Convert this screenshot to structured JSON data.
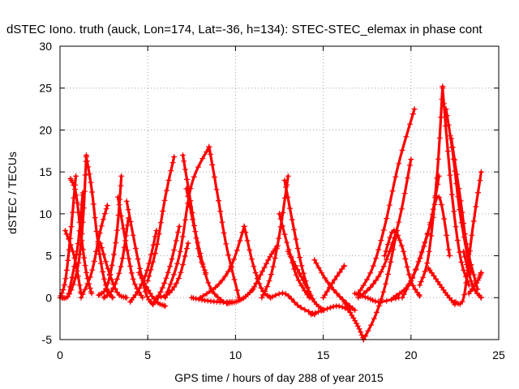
{
  "chart_data": {
    "type": "line",
    "title": "dSTEC Iono. truth (auck, Lon=174, Lat=-36, h=134): STEC-STEC_elemax in phase cont",
    "xlabel": "GPS time / hours of day 288 of year 2015",
    "ylabel": "dSTEC  / TECUs",
    "xlim": [
      0,
      25
    ],
    "ylim": [
      -5,
      30
    ],
    "xticks": [
      "0",
      "5",
      "10",
      "15",
      "20",
      "25"
    ],
    "yticks": [
      "-5",
      "0",
      "5",
      "10",
      "15",
      "20",
      "25",
      "30"
    ],
    "grid": true,
    "series_color": "#ff0000",
    "marker": "plus",
    "series": [
      {
        "x": [
          0.0,
          0.3,
          0.6,
          0.9
        ],
        "y": [
          0.0,
          2.0,
          7.5,
          14.5
        ]
      },
      {
        "x": [
          0.6,
          0.9,
          1.2,
          1.5,
          1.8
        ],
        "y": [
          14.2,
          12.5,
          7.5,
          3.0,
          0.5
        ]
      },
      {
        "x": [
          0.1,
          0.5,
          1.0,
          1.3,
          1.5
        ],
        "y": [
          0.0,
          0.3,
          3.5,
          9.0,
          17.0
        ]
      },
      {
        "x": [
          1.5,
          1.8,
          2.2,
          2.6,
          3.0
        ],
        "y": [
          16.8,
          13.0,
          6.0,
          1.5,
          0.0
        ]
      },
      {
        "x": [
          0.3,
          0.8,
          1.2
        ],
        "y": [
          8.0,
          5.0,
          0.5
        ]
      },
      {
        "x": [
          0.5,
          1.0,
          1.3
        ],
        "y": [
          0.5,
          6.0,
          12.5
        ]
      },
      {
        "x": [
          1.2,
          1.8,
          2.3,
          2.7
        ],
        "y": [
          0.0,
          3.0,
          8.0,
          11.0
        ]
      },
      {
        "x": [
          2.3,
          2.8,
          3.3,
          3.8
        ],
        "y": [
          6.5,
          3.0,
          0.5,
          0.0
        ]
      },
      {
        "x": [
          2.2,
          2.7,
          3.2,
          3.5
        ],
        "y": [
          0.3,
          1.5,
          7.0,
          14.5
        ]
      },
      {
        "x": [
          3.3,
          3.8,
          4.2,
          4.7
        ],
        "y": [
          12.0,
          6.0,
          2.0,
          0.0
        ]
      },
      {
        "x": [
          2.5,
          3.0,
          3.5,
          3.9
        ],
        "y": [
          0.0,
          1.0,
          4.0,
          9.5
        ]
      },
      {
        "x": [
          3.8,
          4.4,
          4.9,
          5.3
        ],
        "y": [
          11.5,
          5.0,
          0.5,
          -0.8
        ]
      },
      {
        "x": [
          4.0,
          4.5,
          5.0,
          5.5
        ],
        "y": [
          -0.5,
          1.0,
          3.5,
          8.0
        ]
      },
      {
        "x": [
          4.5,
          5.0,
          5.5,
          6.0
        ],
        "y": [
          3.0,
          1.0,
          -0.5,
          -1.0
        ]
      },
      {
        "x": [
          5.0,
          5.5,
          6.0,
          6.5
        ],
        "y": [
          2.0,
          6.0,
          12.0,
          16.8
        ]
      },
      {
        "x": [
          5.3,
          5.8,
          6.3,
          6.8
        ],
        "y": [
          -0.8,
          1.0,
          4.0,
          8.5
        ]
      },
      {
        "x": [
          5.5,
          6.2,
          6.8,
          7.3
        ],
        "y": [
          0.0,
          0.5,
          2.5,
          6.5
        ]
      },
      {
        "x": [
          7.0,
          7.4,
          7.9,
          8.3
        ],
        "y": [
          17.0,
          12.0,
          5.5,
          3.0
        ]
      },
      {
        "x": [
          6.0,
          6.8,
          7.5,
          8.5
        ],
        "y": [
          0.0,
          5.0,
          13.5,
          18.0
        ]
      },
      {
        "x": [
          7.2,
          7.8,
          8.5,
          9.3
        ],
        "y": [
          13.0,
          7.0,
          1.5,
          -0.5
        ]
      },
      {
        "x": [
          7.5,
          8.2,
          9.0,
          9.8
        ],
        "y": [
          0.0,
          -0.3,
          -0.5,
          -0.5
        ]
      },
      {
        "x": [
          8.5,
          9.0,
          9.5,
          10.2
        ],
        "y": [
          18.0,
          12.0,
          6.0,
          0.0
        ]
      },
      {
        "x": [
          8.0,
          9.0,
          9.8,
          10.5
        ],
        "y": [
          0.0,
          1.5,
          4.0,
          8.5
        ]
      },
      {
        "x": [
          9.5,
          10.0,
          10.5,
          11.0
        ],
        "y": [
          -0.7,
          -0.5,
          0.0,
          1.0
        ]
      },
      {
        "x": [
          10.5,
          11.0,
          11.5,
          12.0
        ],
        "y": [
          8.5,
          4.0,
          1.0,
          0.0
        ]
      },
      {
        "x": [
          11.0,
          11.5,
          12.0,
          12.4
        ],
        "y": [
          1.0,
          3.0,
          5.0,
          6.2
        ]
      },
      {
        "x": [
          11.5,
          12.0,
          12.5,
          13.0
        ],
        "y": [
          0.0,
          2.5,
          7.5,
          14.5
        ]
      },
      {
        "x": [
          12.5,
          13.0,
          13.5,
          14.2
        ],
        "y": [
          10.0,
          6.0,
          2.5,
          0.0
        ]
      },
      {
        "x": [
          12.8,
          13.3,
          13.8,
          14.3
        ],
        "y": [
          14.0,
          8.5,
          3.5,
          0.0
        ]
      },
      {
        "x": [
          12.0,
          12.8,
          13.6,
          14.5
        ],
        "y": [
          0.0,
          0.5,
          -1.0,
          -2.0
        ]
      },
      {
        "x": [
          13.0,
          13.5,
          14.0,
          14.5,
          15.0
        ],
        "y": [
          5.5,
          3.5,
          1.5,
          -0.5,
          -1.5
        ]
      },
      {
        "x": [
          14.5,
          15.2,
          16.0,
          16.8
        ],
        "y": [
          4.5,
          2.0,
          0.0,
          -1.5
        ]
      },
      {
        "x": [
          15.0,
          15.6,
          16.2
        ],
        "y": [
          0.0,
          2.0,
          3.8
        ]
      },
      {
        "x": [
          14.3,
          15.0,
          15.8,
          16.5
        ],
        "y": [
          -2.0,
          -1.5,
          -1.0,
          -1.5
        ]
      },
      {
        "x": [
          16.2,
          16.6,
          17.0,
          17.3
        ],
        "y": [
          -0.5,
          -2.0,
          -3.5,
          -5.0
        ]
      },
      {
        "x": [
          17.3,
          18.0,
          18.6,
          19.2
        ],
        "y": [
          -5.0,
          -2.0,
          2.0,
          8.0
        ]
      },
      {
        "x": [
          16.8,
          17.5,
          18.2,
          19.3
        ],
        "y": [
          0.5,
          0.0,
          -0.5,
          0.0
        ]
      },
      {
        "x": [
          17.0,
          17.8,
          18.5,
          19.3,
          20.0
        ],
        "y": [
          0.0,
          1.5,
          4.0,
          9.0,
          16.5
        ]
      },
      {
        "x": [
          17.0,
          17.8,
          18.5,
          19.3,
          20.2
        ],
        "y": [
          0.5,
          3.5,
          8.5,
          16.0,
          22.5
        ]
      },
      {
        "x": [
          18.5,
          19.0,
          19.5,
          20.0,
          20.5
        ],
        "y": [
          5.0,
          8.0,
          6.0,
          2.0,
          0.2
        ]
      },
      {
        "x": [
          19.0,
          20.0,
          21.0,
          21.6
        ],
        "y": [
          0.0,
          2.0,
          8.0,
          14.5
        ]
      },
      {
        "x": [
          20.5,
          21.0,
          21.5,
          21.8
        ],
        "y": [
          1.5,
          5.0,
          15.0,
          25.2
        ]
      },
      {
        "x": [
          19.5,
          20.2,
          21.0,
          21.6,
          22.2
        ],
        "y": [
          0.0,
          3.0,
          8.0,
          12.0,
          5.0
        ]
      },
      {
        "x": [
          21.8,
          22.3,
          22.8,
          23.3
        ],
        "y": [
          25.0,
          13.0,
          5.0,
          1.5
        ]
      },
      {
        "x": [
          22.0,
          22.4,
          22.8,
          23.4
        ],
        "y": [
          22.5,
          17.0,
          10.0,
          3.0
        ]
      },
      {
        "x": [
          22.3,
          22.8,
          23.2,
          23.8
        ],
        "y": [
          19.0,
          12.0,
          6.0,
          1.0
        ]
      },
      {
        "x": [
          21.0,
          21.5,
          22.0,
          22.5
        ],
        "y": [
          3.5,
          2.0,
          0.5,
          -0.8
        ]
      },
      {
        "x": [
          22.5,
          23.0,
          23.5,
          24.0
        ],
        "y": [
          -0.5,
          0.0,
          8.0,
          15.0
        ]
      },
      {
        "x": [
          23.0,
          23.5,
          24.0
        ],
        "y": [
          5.5,
          1.5,
          0.0
        ]
      },
      {
        "x": [
          23.3,
          23.8,
          24.0
        ],
        "y": [
          0.5,
          2.0,
          3.0
        ]
      }
    ]
  }
}
